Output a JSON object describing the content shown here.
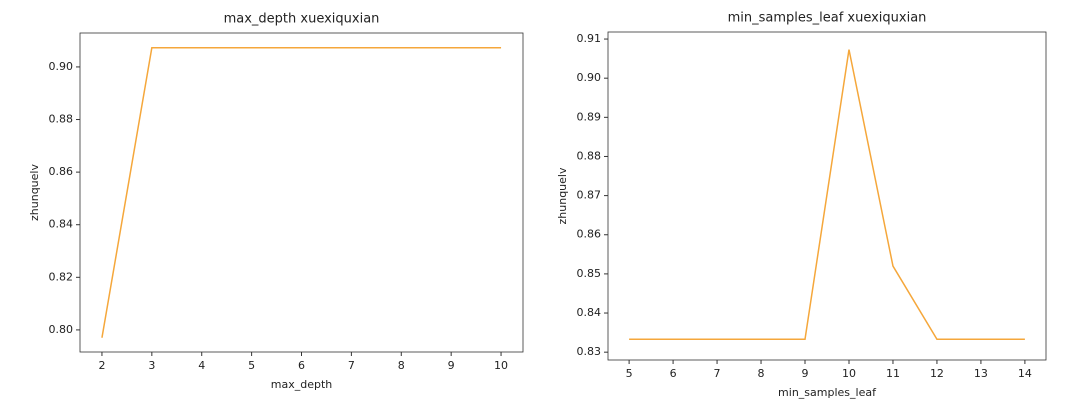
{
  "chart_data": [
    {
      "type": "line",
      "title": "max_depth xuexiquxian",
      "x_label": "max_depth",
      "y_label": "zhunquelv",
      "x": [
        2,
        3,
        4,
        5,
        6,
        7,
        8,
        9,
        10
      ],
      "series": [
        {
          "color": "#f5a73b",
          "values": [
            0.797,
            0.9073,
            0.9073,
            0.9073,
            0.9073,
            0.9073,
            0.9073,
            0.9073,
            0.9073
          ]
        }
      ],
      "xlim": [
        1.56,
        10.44
      ],
      "xticks": [
        2,
        3,
        4,
        5,
        6,
        7,
        8,
        9,
        10
      ],
      "ylim": [
        0.7916,
        0.9129
      ],
      "yticks": [
        {
          "value": 0.8,
          "label": "0.80"
        },
        0.82,
        0.84,
        0.86,
        0.88,
        {
          "value": 0.9,
          "label": "0.90"
        }
      ],
      "grid": false
    },
    {
      "type": "line",
      "title": "min_samples_leaf xuexiquxian",
      "x_label": "min_samples_leaf",
      "y_label": "zhunquelv",
      "x": [
        5,
        6,
        7,
        8,
        9,
        10,
        11,
        12,
        13,
        14
      ],
      "series": [
        {
          "color": "#f5a73b",
          "values": [
            0.8333,
            0.8333,
            0.8333,
            0.8333,
            0.8333,
            0.9073,
            0.852,
            0.8333,
            0.8333,
            0.8333
          ]
        }
      ],
      "xlim": [
        4.52,
        14.48
      ],
      "xticks": [
        5,
        6,
        7,
        8,
        9,
        10,
        11,
        12,
        13,
        14
      ],
      "ylim": [
        0.828,
        0.9118
      ],
      "yticks": [
        0.83,
        0.84,
        0.85,
        0.86,
        0.87,
        0.88,
        0.89,
        {
          "value": 0.9,
          "label": "0.90"
        },
        0.91
      ],
      "grid": false
    }
  ]
}
